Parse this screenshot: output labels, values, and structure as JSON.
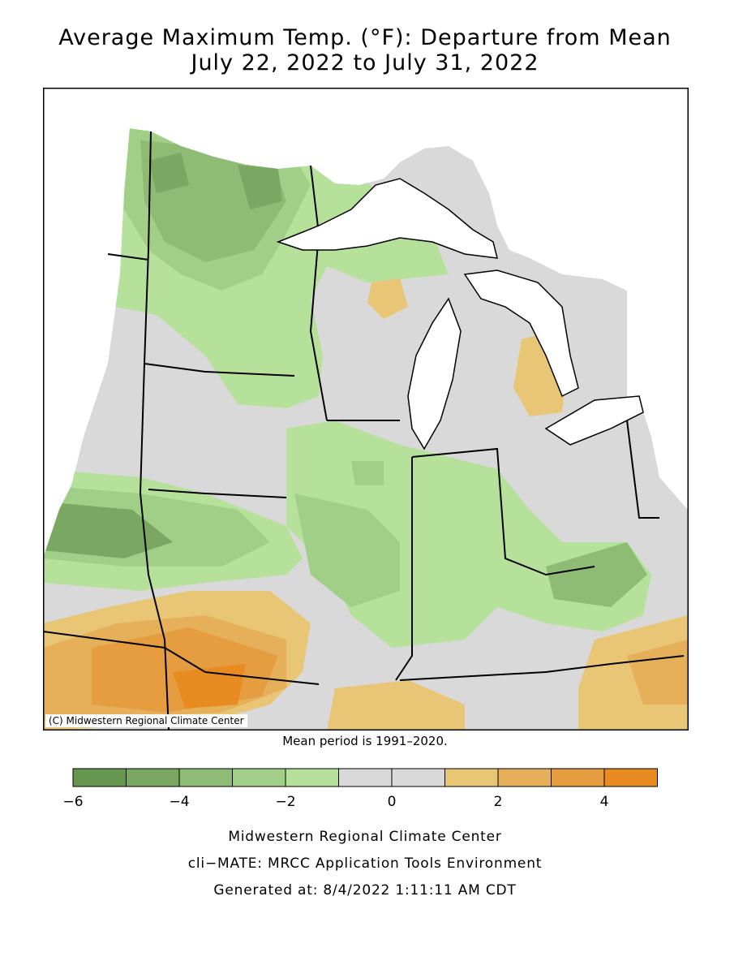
{
  "title": {
    "line1": "Average Maximum Temp. (°F): Departure from Mean",
    "line2": "July 22, 2022 to July 31, 2022"
  },
  "map": {
    "credit": "(C) Midwestern Regional Climate Center",
    "mean_period": "Mean period is 1991–2020."
  },
  "legend": {
    "bins": [
      {
        "from": -6,
        "to": -5,
        "color": "#67964f"
      },
      {
        "from": -5,
        "to": -4,
        "color": "#7aa862"
      },
      {
        "from": -4,
        "to": -3,
        "color": "#8ebc74"
      },
      {
        "from": -3,
        "to": -2,
        "color": "#a2cf87"
      },
      {
        "from": -2,
        "to": -1,
        "color": "#b5e19b"
      },
      {
        "from": -1,
        "to": 0,
        "color": "#d9d9d9"
      },
      {
        "from": 0,
        "to": 1,
        "color": "#d9d9d9"
      },
      {
        "from": 1,
        "to": 2,
        "color": "#e8c676"
      },
      {
        "from": 2,
        "to": 3,
        "color": "#e6b05a"
      },
      {
        "from": 3,
        "to": 4,
        "color": "#e69d3f"
      },
      {
        "from": 4,
        "to": 5,
        "color": "#e88c22"
      }
    ],
    "tick_labels": [
      "−6",
      "−4",
      "−2",
      "0",
      "2",
      "4"
    ]
  },
  "footer": {
    "line1": "Midwestern Regional Climate Center",
    "line2": "cli−MATE: MRCC Application Tools Environment",
    "line3": "Generated at: 8/4/2022 1:11:11 AM CDT"
  }
}
